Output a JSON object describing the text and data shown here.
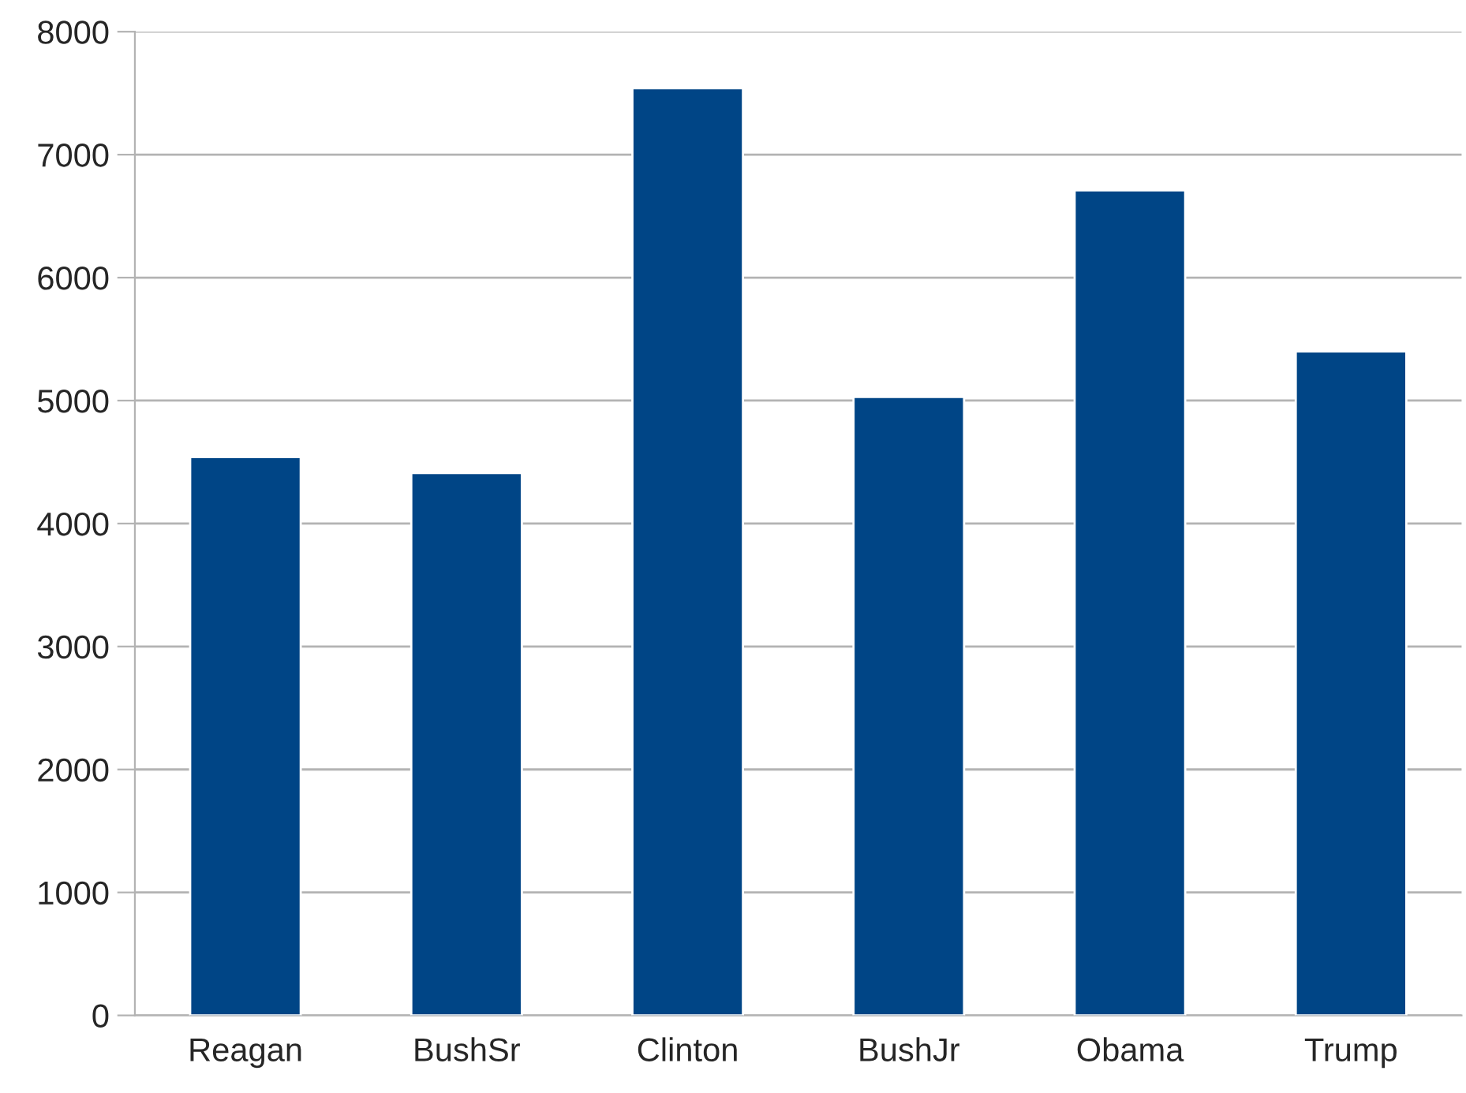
{
  "chart_data": {
    "type": "bar",
    "categories": [
      "Reagan",
      "BushSr",
      "Clinton",
      "BushJr",
      "Obama",
      "Trump"
    ],
    "values": [
      4540,
      4410,
      7540,
      5030,
      6710,
      5400
    ],
    "color": "#004586",
    "ylim": [
      0,
      8000
    ],
    "yticks": [
      0,
      1000,
      2000,
      3000,
      4000,
      5000,
      6000,
      7000,
      8000
    ],
    "grid": "y",
    "legend": false
  }
}
